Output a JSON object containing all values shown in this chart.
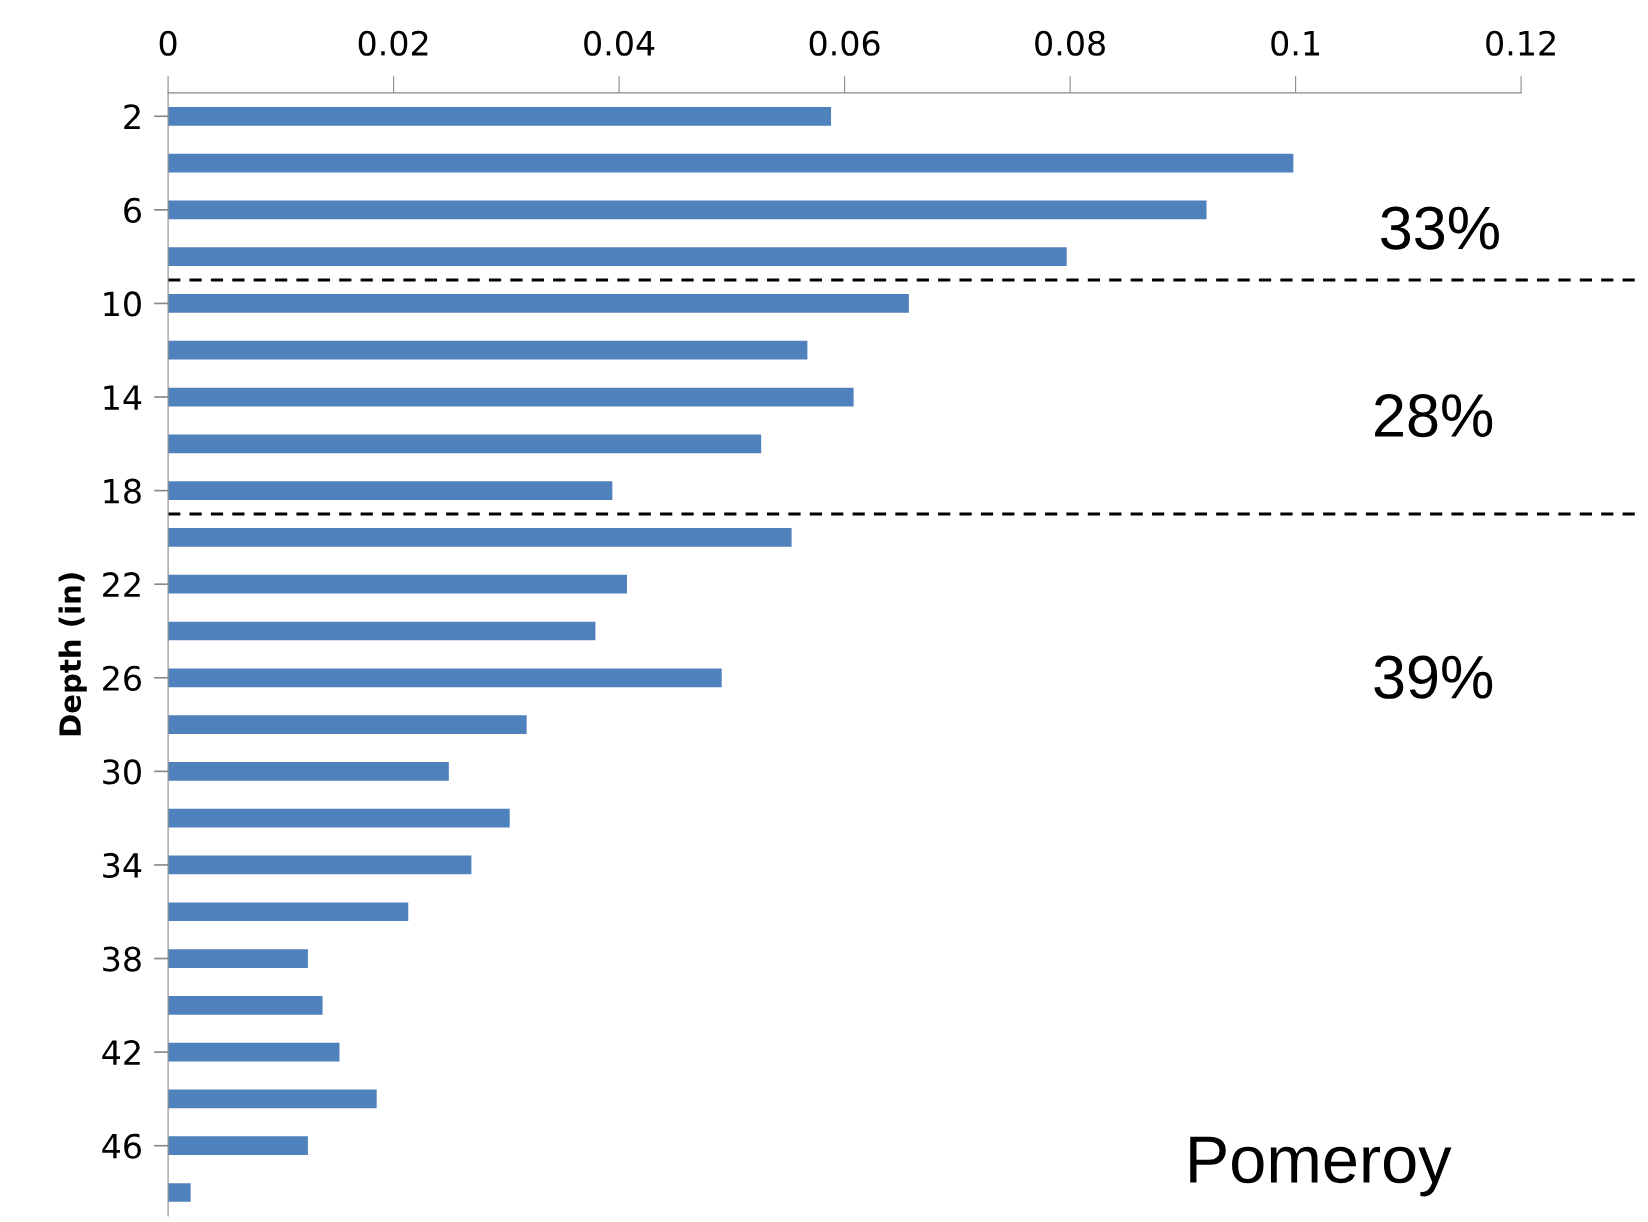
{
  "chart_data": {
    "type": "bar",
    "orientation": "horizontal",
    "ylabel": "Depth (in)",
    "x": [
      2,
      4,
      6,
      8,
      10,
      12,
      14,
      16,
      18,
      20,
      22,
      24,
      26,
      28,
      30,
      32,
      34,
      36,
      38,
      40,
      42,
      44,
      46,
      48
    ],
    "values": [
      0.0588,
      0.0998,
      0.0921,
      0.0797,
      0.0657,
      0.0567,
      0.0608,
      0.0526,
      0.0394,
      0.0553,
      0.0407,
      0.0379,
      0.0491,
      0.0318,
      0.0249,
      0.0303,
      0.0269,
      0.0213,
      0.0124,
      0.0137,
      0.0152,
      0.0185,
      0.0124,
      0.002
    ],
    "color": "#4f81bd",
    "xlim": [
      0,
      0.12
    ],
    "xticks": [
      0,
      0.02,
      0.04,
      0.06,
      0.08,
      0.1,
      0.12
    ],
    "ylim": [
      49,
      1
    ],
    "yticks": [
      2,
      6,
      10,
      14,
      18,
      22,
      26,
      30,
      34,
      38,
      42,
      46
    ],
    "ref_lines": [
      {
        "axis": "y",
        "value": 9,
        "line_style": "dashed",
        "color": "#000000"
      },
      {
        "axis": "y",
        "value": 19,
        "line_style": "dashed",
        "color": "#000000"
      }
    ],
    "annotations": [
      "33%",
      "28%",
      "39%",
      "Pomeroy"
    ],
    "grid": false,
    "legend": false
  }
}
